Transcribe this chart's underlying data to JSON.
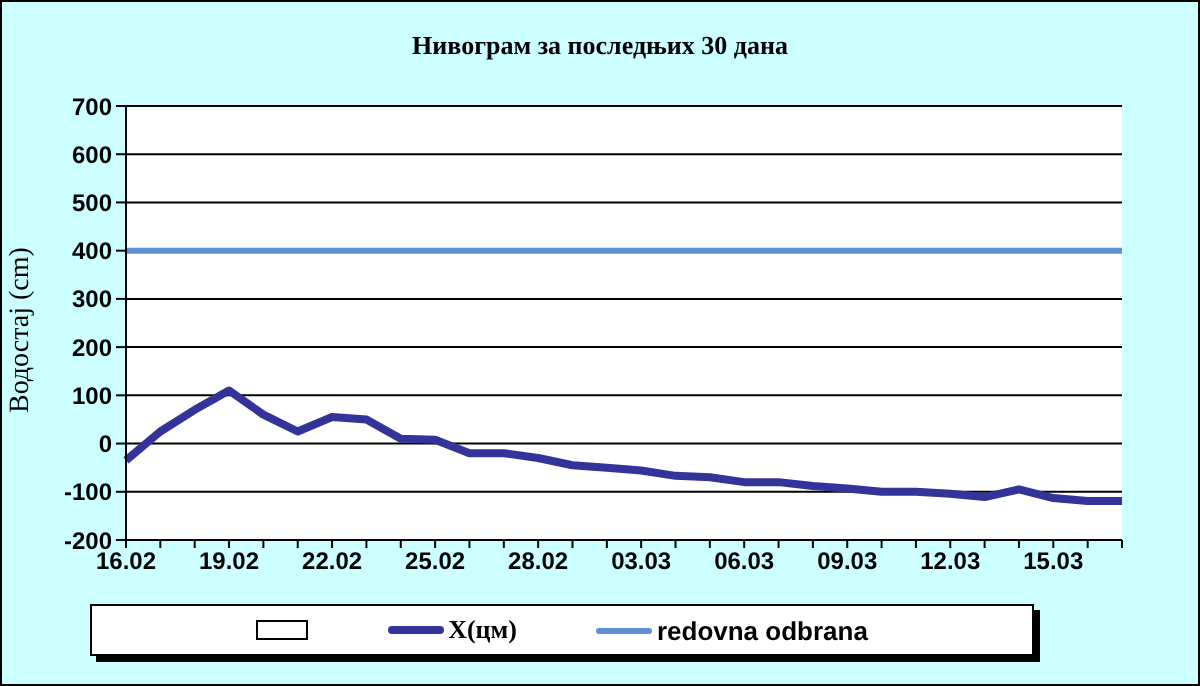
{
  "chart_data": {
    "type": "line",
    "title": "Нивограм за последњих 30 дана",
    "ylabel": "Водостај (cm)",
    "categories": [
      "16.02",
      null,
      null,
      "19.02",
      null,
      null,
      "22.02",
      null,
      null,
      "25.02",
      null,
      null,
      "28.02",
      null,
      null,
      "03.03",
      null,
      null,
      "06.03",
      null,
      null,
      "09.03",
      null,
      null,
      "12.03",
      null,
      null,
      "15.03",
      null,
      null
    ],
    "series": [
      {
        "name": "X(цм)",
        "color": "#333399",
        "values": [
          -35,
          25,
          70,
          110,
          60,
          25,
          55,
          50,
          10,
          8,
          -20,
          -20,
          -30,
          -45,
          -50,
          -56,
          -67,
          -70,
          -80,
          -80,
          -88,
          -93,
          -100,
          -100,
          -104,
          -111,
          -95,
          -113,
          -119,
          -119
        ]
      },
      {
        "name": "redovna odbrana",
        "color": "#5b8fd6",
        "values": [
          400,
          400,
          400,
          400,
          400,
          400,
          400,
          400,
          400,
          400,
          400,
          400,
          400,
          400,
          400,
          400,
          400,
          400,
          400,
          400,
          400,
          400,
          400,
          400,
          400,
          400,
          400,
          400,
          400,
          400
        ]
      }
    ],
    "ylim": [
      -200,
      700
    ],
    "yticks": [
      -200,
      -100,
      0,
      100,
      200,
      300,
      400,
      500,
      600,
      700
    ],
    "grid": "y",
    "legend": "bottom",
    "marker": "none",
    "line_style": "solid"
  }
}
